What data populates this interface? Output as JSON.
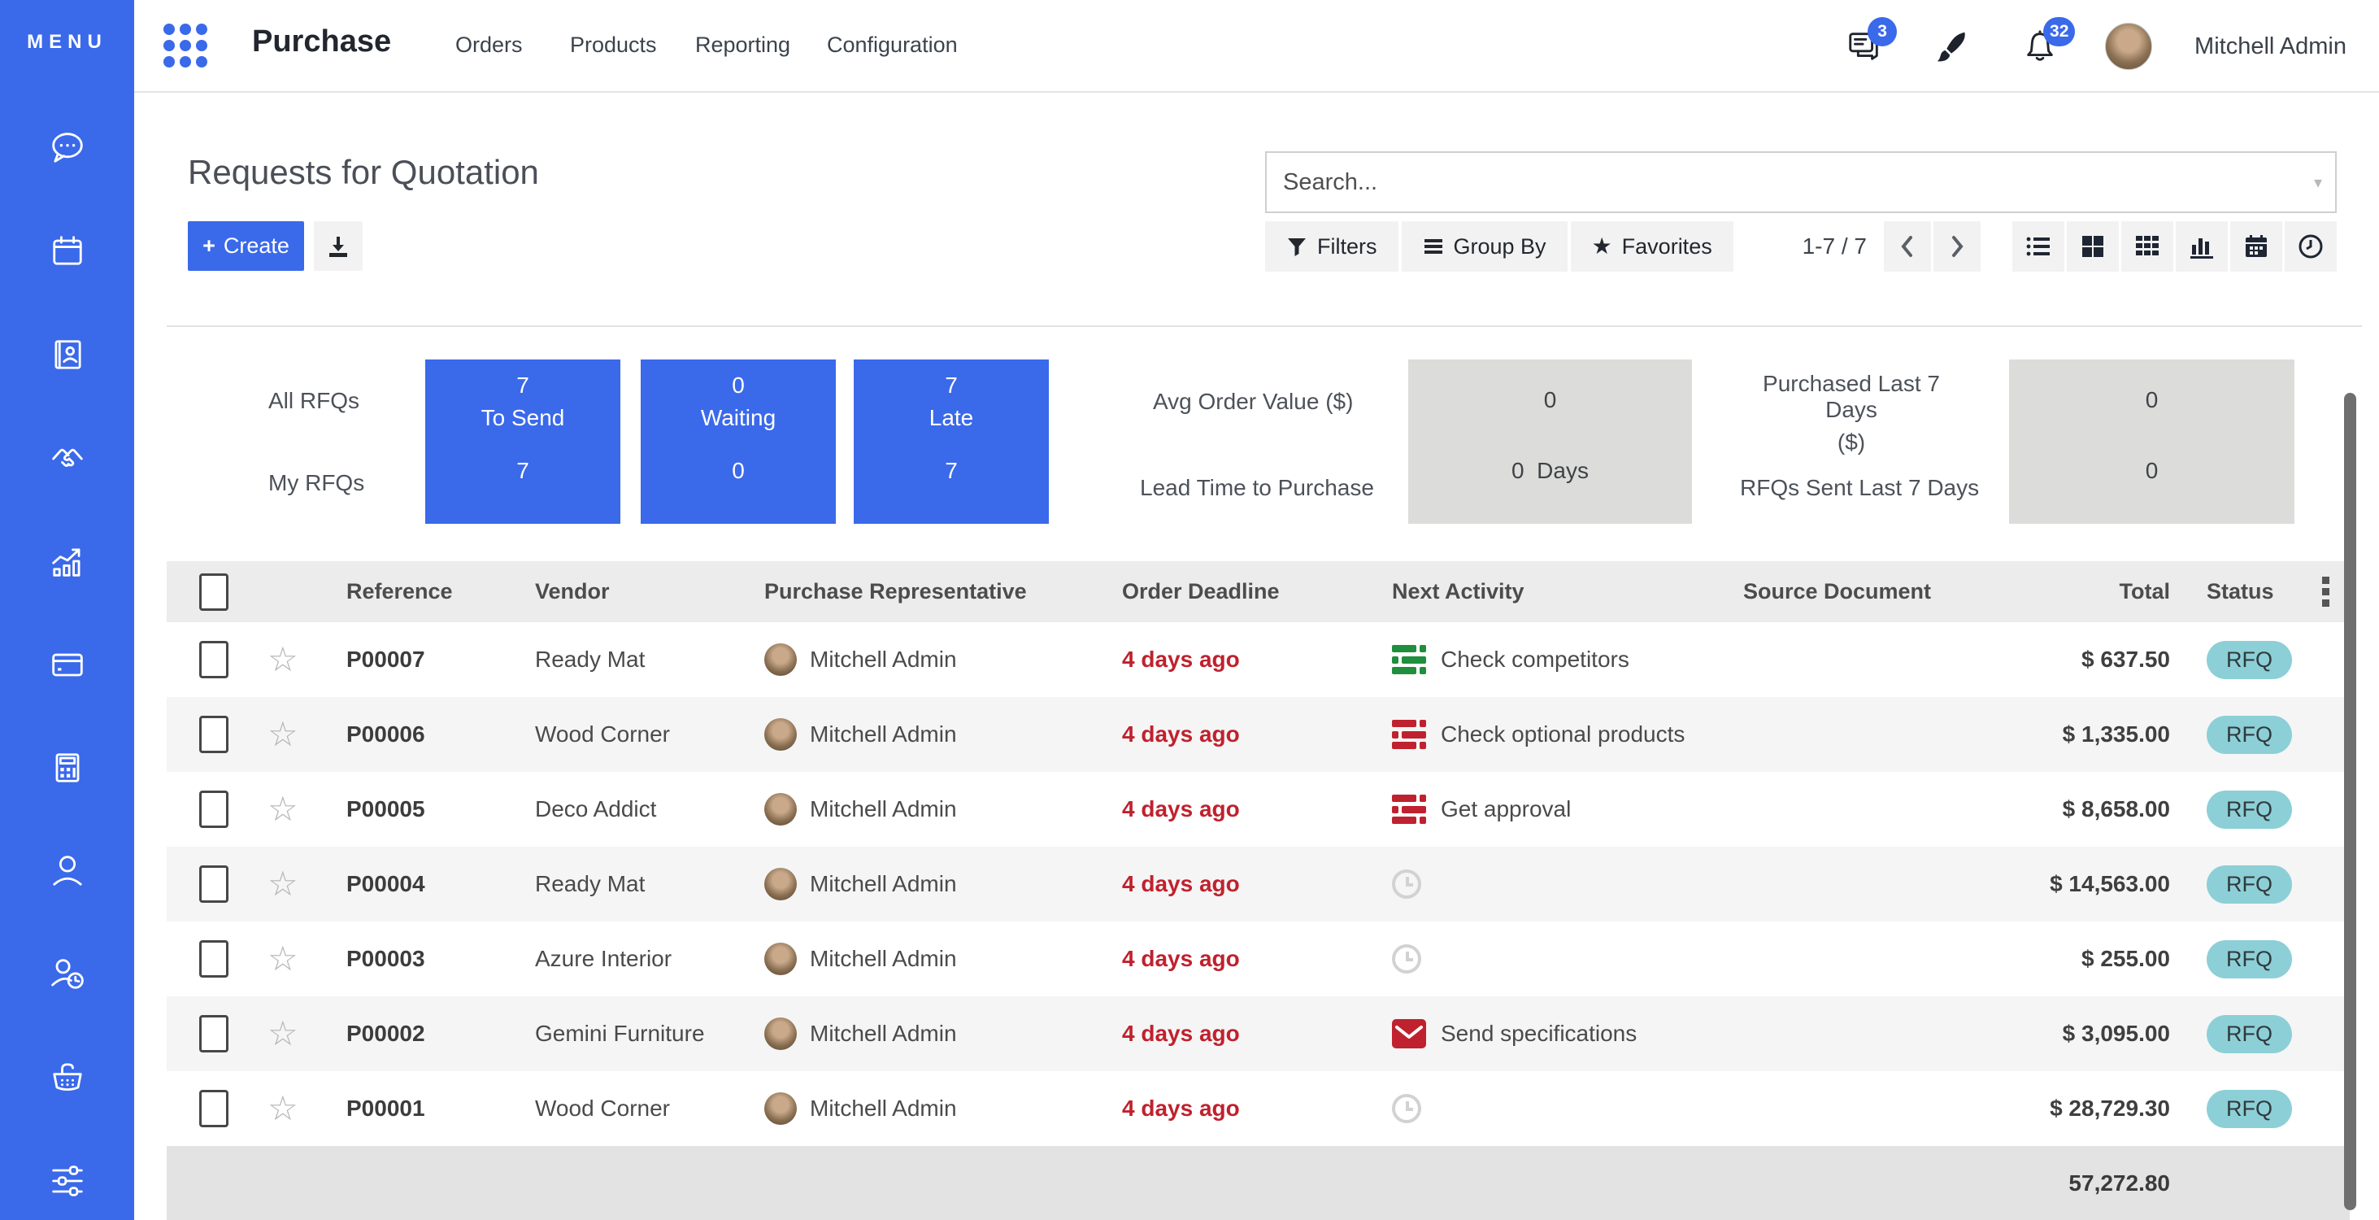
{
  "colors": {
    "primary_blue": "#3a69ea",
    "badge_teal": "#8ccfd7",
    "danger_red": "#c0212e",
    "success_green": "#1f8e3d",
    "muted_gray": "#d2d2d2"
  },
  "sidebar": {
    "menu_label": "MENU",
    "icons": [
      "discuss-chat",
      "calendar",
      "contacts",
      "crm-handshake",
      "sales-chart",
      "invoicing-card",
      "accounting-calculator",
      "employees-user",
      "attendance-user-clock",
      "purchase-basket",
      "settings-sliders"
    ]
  },
  "topbar": {
    "app_name": "Purchase",
    "menus": [
      "Orders",
      "Products",
      "Reporting",
      "Configuration"
    ],
    "messages_badge": "3",
    "notifications_badge": "32",
    "user_name": "Mitchell Admin"
  },
  "control": {
    "page_title": "Requests for Quotation",
    "create_label": "Create",
    "create_plus": "+",
    "search_placeholder": "Search...",
    "filters_label": "Filters",
    "group_by_label": "Group By",
    "favorites_label": "Favorites",
    "favorites_star": "★",
    "pager": "1-7 / 7"
  },
  "dashboard": {
    "row_labels": [
      "All RFQs",
      "My RFQs"
    ],
    "tiles": [
      {
        "top_value": "7",
        "label": "To Send",
        "bottom_value": "7"
      },
      {
        "top_value": "0",
        "label": "Waiting",
        "bottom_value": "0"
      },
      {
        "top_value": "7",
        "label": "Late",
        "bottom_value": "7"
      }
    ],
    "kpis": {
      "avg_order_value_label": "Avg Order Value ($)",
      "avg_order_value": "0",
      "lead_time_label": "Lead Time to Purchase",
      "lead_time_value": "0",
      "lead_time_unit": "Days",
      "purchased_last7_label_1": "Purchased Last 7 Days",
      "purchased_last7_label_2": "($)",
      "purchased_last7_value": "0",
      "rfqs_sent_last7_label": "RFQs Sent Last 7 Days",
      "rfqs_sent_last7_value": "0"
    }
  },
  "table": {
    "columns": [
      "Reference",
      "Vendor",
      "Purchase Representative",
      "Order Deadline",
      "Next Activity",
      "Source Document",
      "Total",
      "Status"
    ],
    "rows": [
      {
        "reference": "P00007",
        "vendor": "Ready Mat",
        "rep": "Mitchell Admin",
        "deadline": "4 days ago",
        "activity": {
          "icon": "activity-list",
          "color": "#1f8e3d",
          "label": "Check competitors"
        },
        "source": "",
        "total": "$ 637.50",
        "status": "RFQ"
      },
      {
        "reference": "P00006",
        "vendor": "Wood Corner",
        "rep": "Mitchell Admin",
        "deadline": "4 days ago",
        "activity": {
          "icon": "activity-list",
          "color": "#c0212e",
          "label": "Check optional products"
        },
        "source": "",
        "total": "$ 1,335.00",
        "status": "RFQ"
      },
      {
        "reference": "P00005",
        "vendor": "Deco Addict",
        "rep": "Mitchell Admin",
        "deadline": "4 days ago",
        "activity": {
          "icon": "activity-list",
          "color": "#c0212e",
          "label": "Get approval"
        },
        "source": "",
        "total": "$ 8,658.00",
        "status": "RFQ"
      },
      {
        "reference": "P00004",
        "vendor": "Ready Mat",
        "rep": "Mitchell Admin",
        "deadline": "4 days ago",
        "activity": {
          "icon": "clock",
          "color": "#d2d2d2",
          "label": ""
        },
        "source": "",
        "total": "$ 14,563.00",
        "status": "RFQ"
      },
      {
        "reference": "P00003",
        "vendor": "Azure Interior",
        "rep": "Mitchell Admin",
        "deadline": "4 days ago",
        "activity": {
          "icon": "clock",
          "color": "#d2d2d2",
          "label": ""
        },
        "source": "",
        "total": "$ 255.00",
        "status": "RFQ"
      },
      {
        "reference": "P00002",
        "vendor": "Gemini Furniture",
        "rep": "Mitchell Admin",
        "deadline": "4 days ago",
        "activity": {
          "icon": "envelope",
          "color": "#c0212e",
          "label": "Send specifications"
        },
        "source": "",
        "total": "$ 3,095.00",
        "status": "RFQ"
      },
      {
        "reference": "P00001",
        "vendor": "Wood Corner",
        "rep": "Mitchell Admin",
        "deadline": "4 days ago",
        "activity": {
          "icon": "clock",
          "color": "#d2d2d2",
          "label": ""
        },
        "source": "",
        "total": "$ 28,729.30",
        "status": "RFQ"
      }
    ],
    "footer_total": "57,272.80"
  }
}
